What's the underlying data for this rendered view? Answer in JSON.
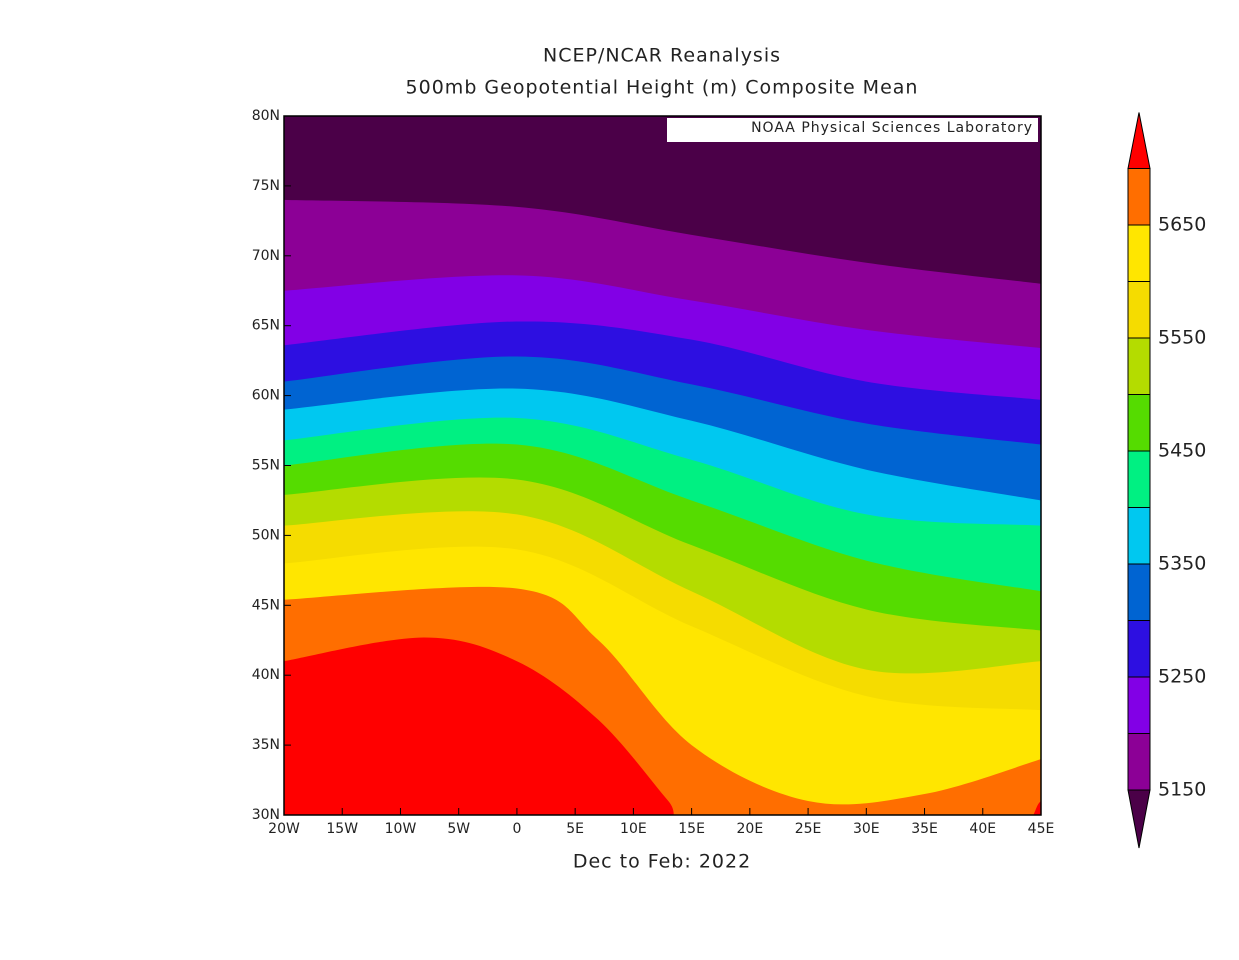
{
  "chart_data": {
    "type": "contour-map",
    "title": "NCEP/NCAR Reanalysis",
    "subtitle": "500mb Geopotential Height (m) Composite Mean",
    "x_label": "Dec to Feb: 2022",
    "annotation": "NOAA Physical Sciences Laboratory",
    "xlim": [
      -20,
      45
    ],
    "ylim": [
      30,
      80
    ],
    "xticks": [
      {
        "value": -20,
        "label": "20W"
      },
      {
        "value": -15,
        "label": "15W"
      },
      {
        "value": -10,
        "label": "10W"
      },
      {
        "value": -5,
        "label": "5W"
      },
      0,
      {
        "value": 5,
        "label": "5E"
      },
      {
        "value": 10,
        "label": "10E"
      },
      {
        "value": 15,
        "label": "15E"
      },
      {
        "value": 20,
        "label": "20E"
      },
      {
        "value": 25,
        "label": "25E"
      },
      {
        "value": 30,
        "label": "30E"
      },
      {
        "value": 35,
        "label": "35E"
      },
      {
        "value": 40,
        "label": "40E"
      },
      {
        "value": 45,
        "label": "45E"
      }
    ],
    "yticks": [
      {
        "value": 30,
        "label": "30N"
      },
      {
        "value": 35,
        "label": "35N"
      },
      {
        "value": 40,
        "label": "40N"
      },
      {
        "value": 45,
        "label": "45N"
      },
      {
        "value": 50,
        "label": "50N"
      },
      {
        "value": 55,
        "label": "55N"
      },
      {
        "value": 60,
        "label": "60N"
      },
      {
        "value": 65,
        "label": "65N"
      },
      {
        "value": 70,
        "label": "70N"
      },
      {
        "value": 75,
        "label": "75N"
      },
      {
        "value": 80,
        "label": "80N"
      }
    ],
    "colorbar": {
      "levels": [
        5150,
        5200,
        5250,
        5300,
        5350,
        5400,
        5450,
        5500,
        5550,
        5600,
        5650,
        5700
      ],
      "ticks": [
        5150,
        5250,
        5350,
        5450,
        5550,
        5650
      ],
      "colors": [
        "#4b0048",
        "#8c0096",
        "#8200e6",
        "#2d0fe1",
        "#0064d2",
        "#00c8f0",
        "#00f082",
        "#55dc00",
        "#b4dc00",
        "#f5dc00",
        "#ffe600",
        "#ff6e00",
        "#ff0000"
      ]
    }
  }
}
